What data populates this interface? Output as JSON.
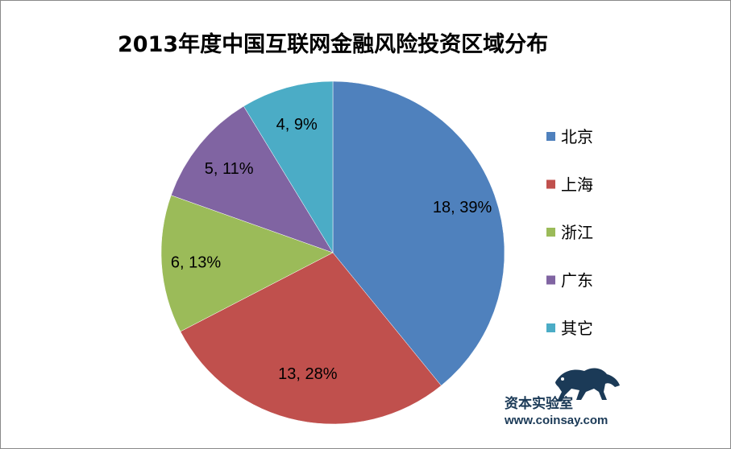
{
  "chart_data": {
    "type": "pie",
    "title": "2013年度中国互联网金融风险投资区域分布",
    "categories": [
      "北京",
      "上海",
      "浙江",
      "广东",
      "其它"
    ],
    "values": [
      18,
      13,
      6,
      5,
      4
    ],
    "percent_labels": [
      "18, 39%",
      "13, 28%",
      "6, 13%",
      "5, 11%",
      "4, 9%"
    ],
    "colors": [
      "#4f81bd",
      "#c0504d",
      "#9bbb59",
      "#8064a2",
      "#4bacc6"
    ],
    "start": "12 o'clock",
    "direction": "clockwise",
    "legend_position": "right"
  },
  "watermark": {
    "name": "资本实验室",
    "url": "www.coinsay.com",
    "icon": "leopard-logo-icon"
  }
}
